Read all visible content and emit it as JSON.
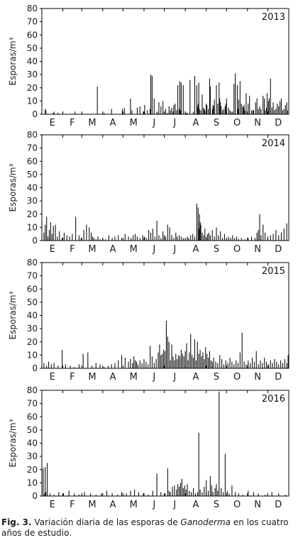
{
  "caption": {
    "label": "Fig. 3.",
    "text_before": "Variación diaria de las esporas de",
    "genus": "Ganoderma",
    "text_after": "en los cuatro años de estudio."
  },
  "chart_data": [
    {
      "type": "bar",
      "title": "2013",
      "ylabel": "Esporas/m³",
      "xlabel": "",
      "ylim": [
        0,
        80
      ],
      "yticks": [
        0,
        10,
        20,
        30,
        40,
        50,
        60,
        70,
        80
      ],
      "month_labels": [
        "E",
        "F",
        "M",
        "A",
        "M",
        "J",
        "J",
        "A",
        "S",
        "O",
        "N",
        "D"
      ],
      "x": [
        5,
        6,
        17,
        18,
        24,
        49,
        82,
        92,
        103,
        119,
        122,
        131,
        133,
        141,
        145,
        150,
        152,
        156,
        160,
        161,
        163,
        166,
        170,
        172,
        173,
        176,
        179,
        181,
        183,
        186,
        188,
        190,
        192,
        194,
        195,
        197,
        199,
        201,
        203,
        204,
        205,
        206,
        209,
        212,
        214,
        215,
        219,
        224,
        226,
        229,
        230,
        231,
        232,
        233,
        235,
        237,
        239,
        240,
        241,
        243,
        244,
        246,
        248,
        249,
        252,
        253,
        254,
        255,
        258,
        260,
        262,
        263,
        264,
        265,
        267,
        269,
        271,
        272,
        273,
        276,
        278,
        280,
        282,
        284,
        286,
        289,
        290,
        291,
        293,
        295,
        297,
        298,
        299,
        300,
        302,
        305,
        307,
        310,
        312,
        313,
        316,
        318,
        320,
        322,
        324,
        327,
        329,
        330,
        332,
        333,
        335,
        336,
        338,
        340,
        342,
        344,
        346,
        348,
        350,
        352,
        354,
        356,
        358,
        360,
        362,
        363
      ],
      "values": [
        4,
        3,
        1,
        2,
        1,
        2,
        21,
        1,
        4,
        4,
        5,
        12,
        3,
        5,
        6,
        2,
        7,
        3,
        4,
        30,
        29,
        12,
        2,
        1,
        9,
        6,
        10,
        2,
        4,
        1,
        6,
        3,
        5,
        2,
        7,
        8,
        3,
        22,
        4,
        25,
        3,
        24,
        22,
        2,
        1,
        1,
        26,
        2,
        29,
        22,
        6,
        8,
        24,
        4,
        3,
        15,
        5,
        4,
        3,
        8,
        7,
        4,
        27,
        21,
        4,
        7,
        6,
        11,
        22,
        8,
        24,
        12,
        9,
        6,
        3,
        4,
        6,
        8,
        12,
        5,
        3,
        2,
        2,
        23,
        31,
        22,
        4,
        11,
        25,
        8,
        6,
        5,
        7,
        3,
        16,
        8,
        14,
        3,
        3,
        3,
        9,
        12,
        4,
        6,
        4,
        14,
        12,
        3,
        5,
        16,
        10,
        12,
        27,
        5,
        9,
        3,
        4,
        8,
        6,
        10,
        12,
        3,
        4,
        7,
        9,
        3
      ]
    },
    {
      "type": "bar",
      "title": "2014",
      "ylabel": "Esporas/m³",
      "xlabel": "",
      "ylim": [
        0,
        80
      ],
      "yticks": [
        0,
        10,
        20,
        30,
        40,
        50,
        60,
        70,
        80
      ],
      "month_labels": [
        "E",
        "F",
        "M",
        "A",
        "M",
        "J",
        "J",
        "A",
        "S",
        "O",
        "N",
        "D"
      ],
      "x": [
        3,
        5,
        7,
        9,
        11,
        13,
        15,
        17,
        20,
        23,
        26,
        30,
        33,
        37,
        41,
        45,
        50,
        55,
        58,
        62,
        66,
        70,
        73,
        75,
        77,
        80,
        83,
        86,
        90,
        94,
        99,
        104,
        108,
        113,
        118,
        123,
        128,
        132,
        135,
        138,
        141,
        145,
        149,
        152,
        155,
        158,
        161,
        164,
        167,
        170,
        173,
        176,
        179,
        181,
        183,
        186,
        189,
        192,
        195,
        198,
        200,
        203,
        206,
        209,
        212,
        215,
        217,
        220,
        223,
        226,
        229,
        231,
        232,
        233,
        234,
        235,
        237,
        239,
        241,
        243,
        245,
        247,
        249,
        252,
        255,
        258,
        261,
        264,
        267,
        270,
        273,
        276,
        279,
        282,
        285,
        288,
        291,
        295,
        300,
        305,
        310,
        315,
        318,
        320,
        322,
        324,
        327,
        330,
        334,
        338,
        342,
        346,
        350,
        354,
        358,
        362
      ],
      "values": [
        6,
        12,
        18,
        3,
        8,
        14,
        5,
        11,
        12,
        3,
        7,
        2,
        6,
        4,
        3,
        5,
        18,
        4,
        2,
        8,
        12,
        10,
        6,
        3,
        2,
        1,
        3,
        1,
        2,
        1,
        4,
        2,
        3,
        4,
        2,
        5,
        3,
        2,
        4,
        5,
        3,
        2,
        4,
        3,
        2,
        8,
        6,
        9,
        3,
        15,
        4,
        2,
        7,
        4,
        3,
        12,
        10,
        4,
        2,
        6,
        3,
        4,
        3,
        2,
        1,
        3,
        2,
        4,
        5,
        3,
        28,
        25,
        9,
        20,
        14,
        12,
        6,
        4,
        9,
        3,
        5,
        6,
        4,
        8,
        3,
        10,
        4,
        7,
        2,
        5,
        1,
        3,
        2,
        4,
        2,
        3,
        1,
        2,
        1,
        2,
        3,
        2,
        6,
        8,
        20,
        4,
        12,
        6,
        3,
        4,
        5,
        8,
        4,
        6,
        9,
        13
      ]
    },
    {
      "type": "bar",
      "title": "2015",
      "ylabel": "Esporas/m³",
      "xlabel": "",
      "ylim": [
        0,
        80
      ],
      "yticks": [
        0,
        10,
        20,
        30,
        40,
        50,
        60,
        70,
        80
      ],
      "month_labels": [
        "E",
        "F",
        "M",
        "A",
        "M",
        "J",
        "J",
        "A",
        "S",
        "O",
        "N",
        "D"
      ],
      "x": [
        3,
        7,
        10,
        14,
        18,
        24,
        30,
        35,
        42,
        48,
        55,
        61,
        68,
        74,
        80,
        86,
        92,
        98,
        103,
        108,
        113,
        118,
        123,
        128,
        131,
        134,
        136,
        138,
        140,
        142,
        145,
        148,
        151,
        154,
        157,
        160,
        163,
        166,
        169,
        172,
        174,
        176,
        178,
        180,
        182,
        184,
        186,
        188,
        190,
        192,
        194,
        196,
        198,
        200,
        202,
        204,
        206,
        208,
        210,
        212,
        214,
        216,
        218,
        220,
        222,
        224,
        226,
        228,
        230,
        232,
        234,
        236,
        238,
        240,
        242,
        244,
        246,
        248,
        250,
        252,
        254,
        257,
        260,
        263,
        266,
        269,
        272,
        275,
        278,
        281,
        284,
        287,
        290,
        293,
        296,
        299,
        302,
        305,
        308,
        311,
        314,
        317,
        320,
        323,
        326,
        329,
        332,
        335,
        338,
        341,
        344,
        347,
        350,
        353,
        356,
        359,
        362,
        364
      ],
      "values": [
        4,
        2,
        5,
        3,
        4,
        2,
        14,
        3,
        2,
        1,
        3,
        11,
        12,
        2,
        4,
        3,
        1,
        2,
        3,
        4,
        6,
        10,
        8,
        5,
        7,
        4,
        9,
        6,
        5,
        3,
        6,
        4,
        7,
        5,
        3,
        17,
        9,
        4,
        7,
        12,
        18,
        10,
        11,
        14,
        13,
        36,
        24,
        20,
        6,
        18,
        9,
        6,
        11,
        7,
        10,
        9,
        14,
        11,
        9,
        13,
        19,
        6,
        12,
        26,
        10,
        8,
        22,
        6,
        20,
        11,
        14,
        9,
        12,
        7,
        16,
        11,
        8,
        13,
        6,
        5,
        8,
        5,
        4,
        10,
        7,
        3,
        6,
        4,
        8,
        5,
        3,
        6,
        4,
        12,
        27,
        5,
        3,
        6,
        4,
        8,
        5,
        13,
        3,
        6,
        4,
        8,
        5,
        3,
        6,
        4,
        7,
        5,
        3,
        6,
        4,
        7,
        4,
        10
      ]
    },
    {
      "type": "bar",
      "title": "2016",
      "ylabel": "Esporas/m³",
      "xlabel": "",
      "ylim": [
        0,
        80
      ],
      "yticks": [
        0,
        10,
        20,
        30,
        40,
        50,
        60,
        70,
        80
      ],
      "month_labels": [
        "E",
        "F",
        "M",
        "A",
        "M",
        "J",
        "J",
        "A",
        "S",
        "O",
        "N",
        "D"
      ],
      "x": [
        2,
        4,
        5,
        6,
        8,
        12,
        18,
        25,
        32,
        40,
        48,
        55,
        63,
        72,
        80,
        88,
        96,
        104,
        112,
        118,
        125,
        131,
        137,
        143,
        150,
        157,
        164,
        170,
        176,
        182,
        186,
        188,
        190,
        193,
        196,
        199,
        201,
        203,
        205,
        207,
        209,
        211,
        213,
        215,
        218,
        221,
        224,
        227,
        230,
        232,
        234,
        237,
        240,
        243,
        246,
        249,
        251,
        253,
        256,
        258,
        260,
        262,
        265,
        268,
        271,
        274,
        277,
        281,
        286,
        291,
        297,
        305,
        313,
        320,
        330,
        340,
        350,
        360
      ],
      "values": [
        21,
        2,
        22,
        3,
        25,
        2,
        1,
        3,
        2,
        4,
        2,
        1,
        3,
        2,
        1,
        2,
        4,
        2,
        1,
        3,
        2,
        4,
        5,
        3,
        2,
        1,
        4,
        17,
        3,
        2,
        21,
        4,
        3,
        7,
        8,
        5,
        9,
        7,
        10,
        13,
        6,
        8,
        5,
        9,
        4,
        3,
        6,
        2,
        3,
        48,
        5,
        3,
        7,
        12,
        4,
        15,
        8,
        3,
        6,
        9,
        4,
        79,
        6,
        3,
        32,
        4,
        2,
        8,
        3,
        2,
        1,
        4,
        3,
        2,
        1,
        3,
        2,
        1
      ]
    }
  ]
}
